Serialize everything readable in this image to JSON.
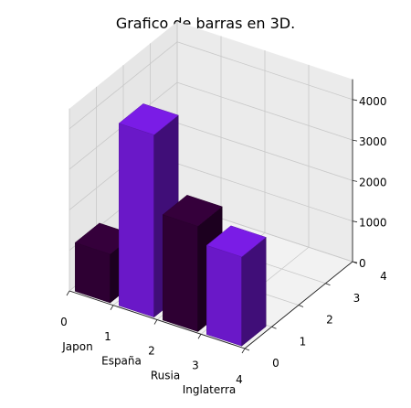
{
  "chart_data": {
    "type": "bar",
    "title": "Grafico de barras en 3D.",
    "categories": [
      "Japon",
      "España",
      "Rusia",
      "Inglaterra"
    ],
    "values": [
      1200,
      4500,
      2600,
      2200
    ],
    "colors": [
      "#2e0033",
      "#6a18c8",
      "#2e0033",
      "#6a18c8"
    ],
    "x_ticks": [
      "0",
      "1",
      "2",
      "3",
      "4"
    ],
    "y_ticks": [
      "0",
      "1",
      "2",
      "3",
      "4"
    ],
    "z_ticks": [
      "0",
      "1000",
      "2000",
      "3000",
      "4000"
    ],
    "xlim": [
      0,
      4
    ],
    "ylim": [
      0,
      4
    ],
    "zlim": [
      0,
      4500
    ],
    "grid": true
  }
}
